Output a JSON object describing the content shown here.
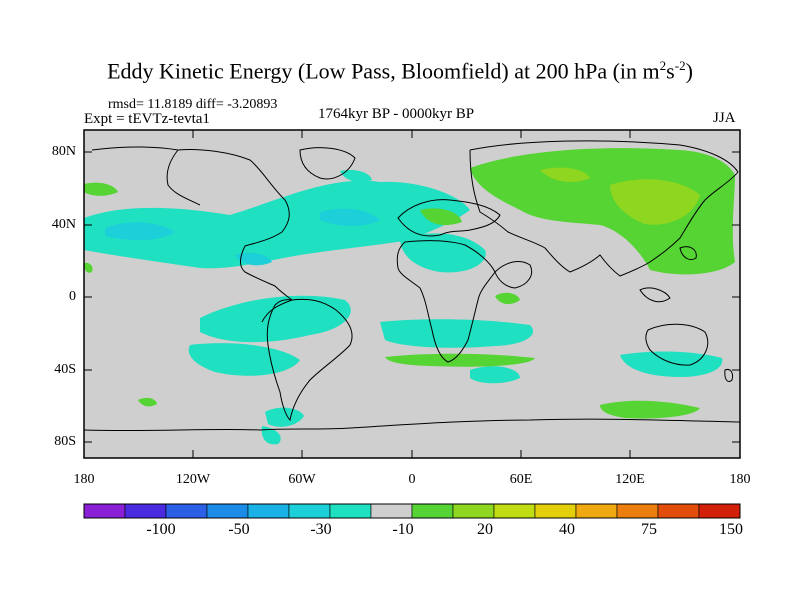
{
  "title": {
    "main": "Eddy Kinetic Energy (Low Pass, Bloomfield) at 200 hPa (in m",
    "sup1": "2",
    "mid": "s",
    "sup2": "-2",
    "close": ")"
  },
  "stats": "rmsd= 11.8189 diff= -3.20893",
  "experiment": "Expt = tEVTz-tevta1",
  "period": "1764kyr BP - 0000kyr BP",
  "season": "JJA",
  "lat_labels": [
    "80N",
    "40N",
    "0",
    "40S",
    "80S"
  ],
  "lon_labels": [
    "180",
    "120W",
    "60W",
    "0",
    "60E",
    "120E",
    "180"
  ],
  "colorbar": {
    "labels": [
      "-100",
      "-50",
      "-30",
      "-10",
      "20",
      "40",
      "75",
      "150"
    ],
    "colors": [
      "#8a1fd6",
      "#4a2be0",
      "#2a5fe6",
      "#1a8ce8",
      "#19b1e6",
      "#1ccfd9",
      "#1fe0c0",
      "#cfcfcf",
      "#55d433",
      "#8ed61f",
      "#c0dc12",
      "#e4cf0c",
      "#f0a910",
      "#ec7e10",
      "#e24d0c",
      "#d2200a"
    ]
  },
  "colors": {
    "land_background": "#cfcfcf",
    "negative_anomaly": "#1fe0c0",
    "negative_anomaly_strong": "#1ccfd9",
    "positive_anomaly": "#55d433",
    "positive_anomaly_strong": "#8ed61f"
  }
}
